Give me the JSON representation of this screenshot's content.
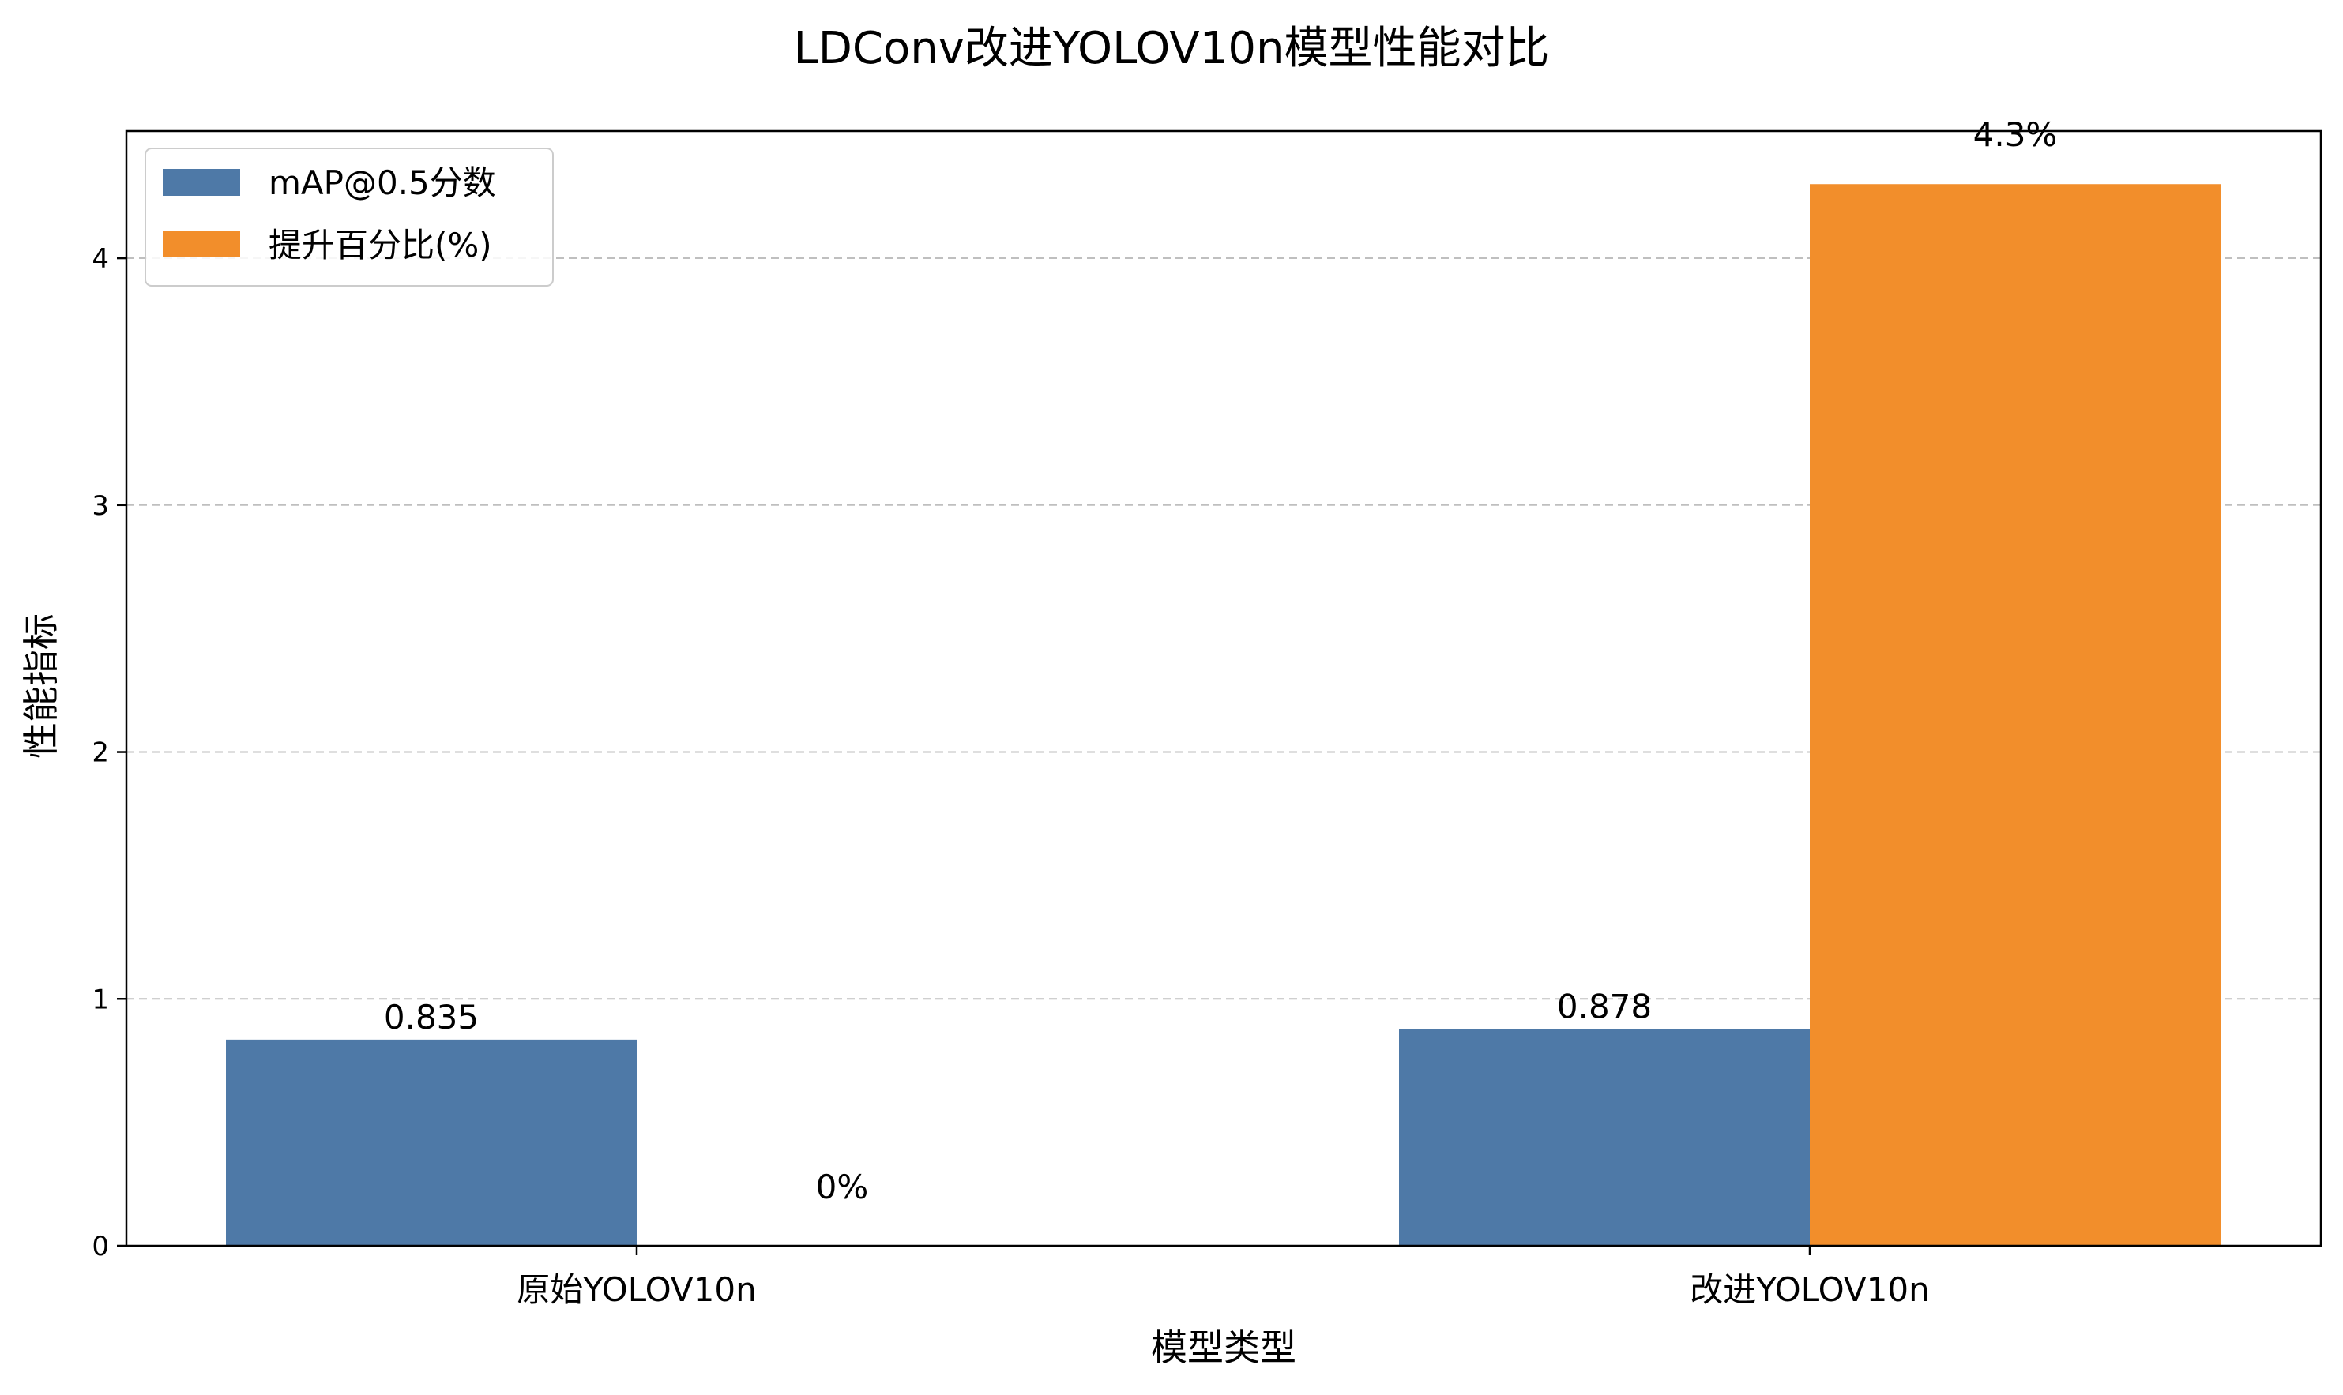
{
  "chart_data": {
    "type": "bar",
    "title": "LDConv改进YOLOV10n模型性能对比",
    "xlabel": "模型类型",
    "ylabel": "性能指标",
    "categories": [
      "原始YOLOV10n",
      "改进YOLOV10n"
    ],
    "series": [
      {
        "name": "mAP@0.5分数",
        "values": [
          0.835,
          0.878
        ],
        "labels": [
          "0.835",
          "0.878"
        ],
        "color": "#4e79a7"
      },
      {
        "name": "提升百分比(%)",
        "values": [
          0,
          4.3
        ],
        "labels": [
          "0%",
          "4.3%"
        ],
        "color": "#f28e2b"
      }
    ],
    "ylim": [
      0,
      4.515
    ],
    "yticks": [
      0,
      1,
      2,
      3,
      4
    ],
    "ytick_labels": [
      "0",
      "1",
      "2",
      "3",
      "4"
    ],
    "grid": true,
    "legend_position": "top-left"
  }
}
